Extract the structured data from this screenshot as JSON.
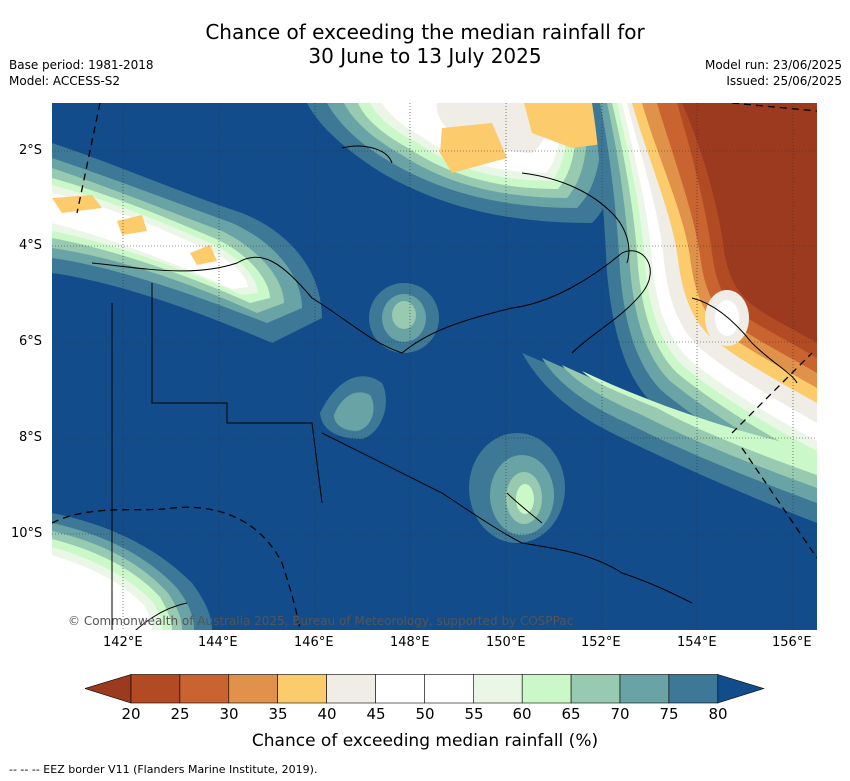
{
  "header": {
    "title_line1": "Chance of exceeding the median rainfall for",
    "title_line2": "30 June to 13 July 2025",
    "base_period": "Base period: 1981-2018",
    "model": "Model: ACCESS-S2",
    "model_run": "Model run: 23/06/2025",
    "issued": "Issued: 25/06/2025"
  },
  "map": {
    "lat_labels": [
      "2°S",
      "4°S",
      "6°S",
      "8°S",
      "10°S"
    ],
    "lon_labels": [
      "142°E",
      "144°E",
      "146°E",
      "148°E",
      "150°E",
      "152°E",
      "154°E",
      "156°E"
    ],
    "copyright": "© Commonwealth of Australia 2025, Bureau of Meteorology, supported by COSPPac"
  },
  "colorbar": {
    "ticks": [
      "20",
      "25",
      "30",
      "35",
      "40",
      "45",
      "50",
      "55",
      "60",
      "65",
      "70",
      "75",
      "80"
    ],
    "label": "Chance of exceeding median rainfall (%)",
    "colors": [
      "#9c3a20",
      "#b24a24",
      "#c9632f",
      "#e0924a",
      "#fccb6c",
      "#f0ece6",
      "#ffffff",
      "#ffffff",
      "#eaf6e6",
      "#cbf8c9",
      "#97cab0",
      "#6aa3a6",
      "#3d7897",
      "#124c8a"
    ]
  },
  "footnote": "-- -- -- EEZ border V11 (Flanders Marine Institute, 2019)."
}
